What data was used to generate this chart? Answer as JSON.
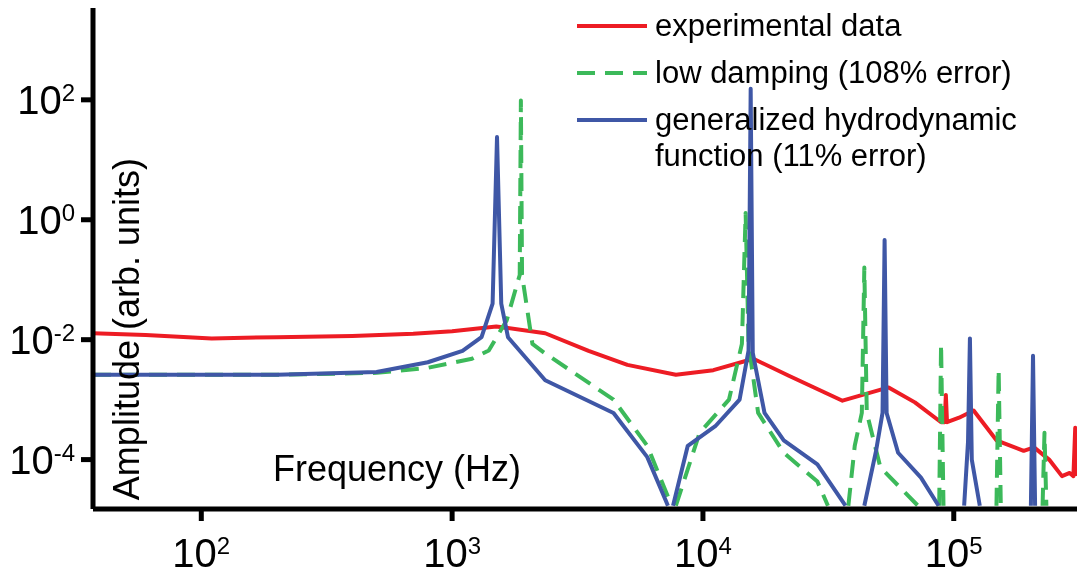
{
  "chart_data": {
    "type": "line",
    "xlabel": "Frequency (Hz)",
    "ylabel": "Amplitude (arb. units)",
    "log": "xy",
    "legend": "top right",
    "marker": "none",
    "xlim": [
      37,
      310000
    ],
    "ylim": [
      1.5e-05,
      3400
    ],
    "xticks": [
      {
        "value": 100,
        "label": "10$^{2}$"
      },
      {
        "value": 1000,
        "label": "10$^{3}$"
      },
      {
        "value": 10000,
        "label": "10$^{4}$"
      },
      {
        "value": 100000,
        "label": "10$^{5}$"
      }
    ],
    "yticks": [
      {
        "value": 0.0001,
        "label": "10$^{-4}$"
      },
      {
        "value": 0.01,
        "label": "10$^{-2}$"
      },
      {
        "value": 1,
        "label": "10$^{0}$"
      },
      {
        "value": 100,
        "label": "10$^{2}$"
      }
    ],
    "series": [
      {
        "name": "experimental data",
        "color": "#ed1c24",
        "line_style": "solid",
        "x": [
          37,
          60,
          110,
          200,
          400,
          700,
          1000,
          1500,
          2350,
          3500,
          5000,
          7800,
          11000,
          15900,
          22000,
          36000,
          55000,
          70000,
          89000,
          92000,
          93000,
          94000,
          105000,
          120000,
          148000,
          190000,
          209000,
          240000,
          270000,
          290000,
          300000,
          305000,
          307000
        ],
        "values": [
          0.0128,
          0.012,
          0.0105,
          0.011,
          0.0115,
          0.0125,
          0.0138,
          0.0166,
          0.0128,
          0.0065,
          0.0038,
          0.0026,
          0.0031,
          0.0048,
          0.0025,
          0.00096,
          0.0016,
          0.0009,
          0.00042,
          0.00042,
          0.0012,
          0.00042,
          0.0005,
          0.00066,
          0.00021,
          0.00014,
          0.00016,
          0.0001,
          5.3e-05,
          6e-05,
          5.3e-05,
          0.00034,
          5.3e-05
        ]
      },
      {
        "name": "low damping (108% error)",
        "color": "#3cb95a",
        "line_style": "dashed",
        "x": [
          37,
          200,
          500,
          800,
          1200,
          1400,
          1650,
          1860,
          1880,
          1900,
          2090,
          2350,
          4400,
          6000,
          7500,
          7650,
          7800,
          9700,
          12700,
          14300,
          14800,
          15200,
          16600,
          21000,
          28600,
          31500,
          35000,
          38000,
          40300,
          43000,
          44000,
          45000,
          51000,
          72000,
          80000,
          87500,
          89000,
          91000,
          120000,
          148000,
          151000,
          154000,
          190000,
          226000,
          230000,
          234000
        ],
        "values": [
          0.0026,
          0.0026,
          0.0028,
          0.0034,
          0.0048,
          0.0066,
          0.021,
          0.12,
          97,
          0.12,
          0.0085,
          0.0059,
          0.001,
          0.00017,
          1.7e-05,
          null,
          1.7e-05,
          0.00028,
          0.001,
          0.0085,
          1.3,
          0.0085,
          0.0006,
          0.00013,
          4.3e-05,
          1.7e-05,
          null,
          1.7e-05,
          0.00017,
          0.0006,
          0.16,
          0.0006,
          7.4e-05,
          1.7e-05,
          null,
          1.7e-05,
          0.0085,
          1.7e-05,
          null,
          1.7e-05,
          0.0032,
          1.7e-05,
          null,
          1.7e-05,
          0.00028,
          1.7e-05
        ]
      },
      {
        "name": "generalized hydrodynamic function (11% error)",
        "color": "#3f57a6",
        "line_style": "solid",
        "x": [
          37,
          200,
          500,
          800,
          1100,
          1310,
          1450,
          1510,
          1570,
          1670,
          2350,
          4400,
          6000,
          7100,
          7250,
          7400,
          7600,
          8700,
          11200,
          14000,
          15200,
          15500,
          15800,
          17600,
          21000,
          28600,
          37000,
          40000,
          44000,
          49000,
          52000,
          53000,
          54000,
          60000,
          74000,
          87000,
          100000,
          110000,
          114000,
          116000,
          118000,
          127000,
          160000,
          203000,
          207000,
          211000
        ],
        "values": [
          0.0026,
          0.0026,
          0.0029,
          0.0042,
          0.0065,
          0.011,
          0.04,
          24,
          0.04,
          0.011,
          0.0021,
          0.0006,
          0.00011,
          2.1e-05,
          1.7e-05,
          null,
          1.7e-05,
          0.00017,
          0.00036,
          0.001,
          0.0066,
          153,
          0.006,
          0.0006,
          0.00021,
          8.3e-05,
          1.7e-05,
          null,
          1.7e-05,
          0.00014,
          0.0006,
          0.46,
          0.0006,
          0.00013,
          5e-05,
          1.7e-05,
          null,
          1.7e-05,
          0.0002,
          0.0105,
          0.0001,
          1.7e-05,
          null,
          1.7e-05,
          0.0054,
          1.7e-05
        ]
      }
    ]
  }
}
